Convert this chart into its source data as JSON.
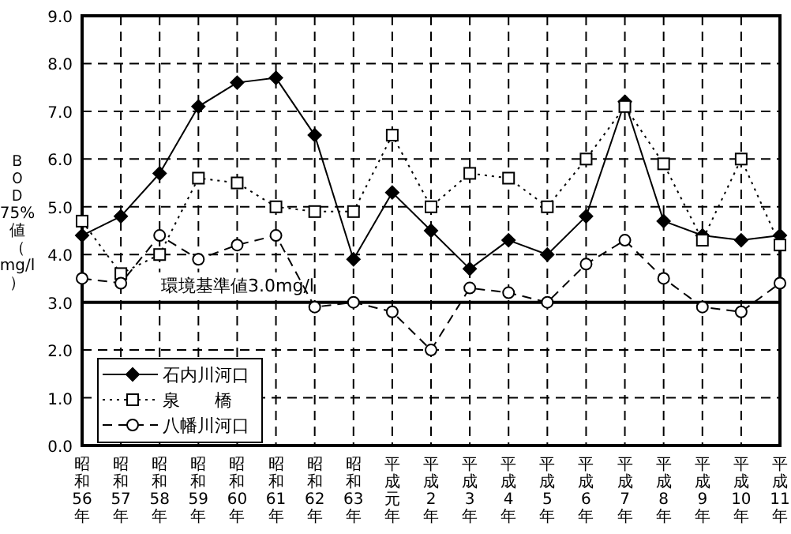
{
  "chart_data": {
    "type": "line",
    "ylabel": "ＢＯＤ75%値（mg/l）",
    "categories": [
      "昭和56年",
      "昭和57年",
      "昭和58年",
      "昭和59年",
      "昭和60年",
      "昭和61年",
      "昭和62年",
      "昭和63年",
      "平成元年",
      "平成2年",
      "平成3年",
      "平成4年",
      "平成5年",
      "平成6年",
      "平成7年",
      "平成8年",
      "平成9年",
      "平成10年",
      "平成11年"
    ],
    "series": [
      {
        "name": "石内川河口",
        "color": "#000000",
        "marker": "diamond",
        "line_style": "solid",
        "values": [
          4.4,
          4.8,
          5.7,
          7.1,
          7.6,
          7.7,
          6.5,
          3.9,
          5.3,
          4.5,
          3.7,
          4.3,
          4.0,
          4.8,
          7.2,
          4.7,
          4.4,
          4.3,
          4.4
        ]
      },
      {
        "name": "泉　　橋",
        "color": "#000000",
        "marker": "square",
        "line_style": "dotted",
        "values": [
          4.7,
          3.6,
          4.0,
          5.6,
          5.5,
          5.0,
          4.9,
          4.9,
          6.5,
          5.0,
          5.7,
          5.6,
          5.0,
          6.0,
          7.1,
          5.9,
          4.3,
          6.0,
          4.2
        ]
      },
      {
        "name": "八幡川河口",
        "color": "#000000",
        "marker": "circle",
        "line_style": "dashed",
        "values": [
          3.5,
          3.4,
          4.4,
          3.9,
          4.2,
          4.4,
          2.9,
          3.0,
          2.8,
          2.0,
          3.3,
          3.2,
          3.0,
          3.8,
          4.3,
          3.5,
          2.9,
          2.8,
          3.4
        ]
      }
    ],
    "ylim": [
      0,
      9
    ],
    "yticks": [
      {
        "value": 0,
        "label": "0.0"
      },
      {
        "value": 1,
        "label": "1.0"
      },
      {
        "value": 2,
        "label": "2.0"
      },
      {
        "value": 3,
        "label": "3.0"
      },
      {
        "value": 4,
        "label": "4.0"
      },
      {
        "value": 5,
        "label": "5.0"
      },
      {
        "value": 6,
        "label": "6.0"
      },
      {
        "value": 7,
        "label": "7.0"
      },
      {
        "value": 8,
        "label": "8.0"
      },
      {
        "value": 9,
        "label": "9.0"
      }
    ],
    "ref_lines": [
      {
        "axis": "y",
        "value": 3.0,
        "label": "環境基準値3.0mg/l",
        "color": "#000000",
        "line_style": "solid"
      }
    ],
    "grid": true,
    "legend": "bottom left"
  }
}
